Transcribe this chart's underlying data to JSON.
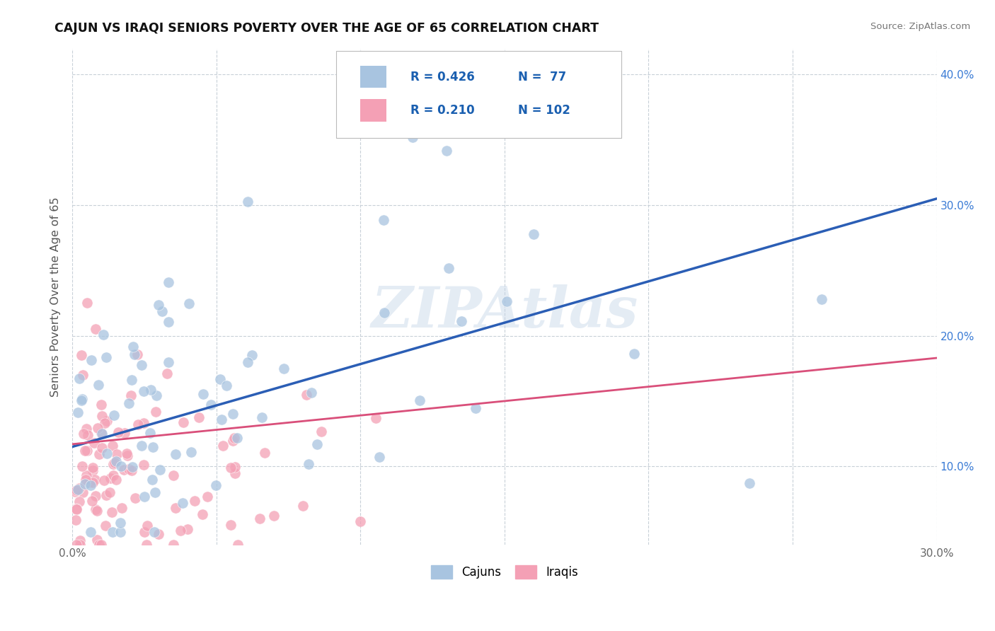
{
  "title": "CAJUN VS IRAQI SENIORS POVERTY OVER THE AGE OF 65 CORRELATION CHART",
  "source_text": "Source: ZipAtlas.com",
  "ylabel": "Seniors Poverty Over the Age of 65",
  "xlim": [
    0.0,
    0.3
  ],
  "ylim": [
    0.04,
    0.42
  ],
  "xtick_vals": [
    0.0,
    0.05,
    0.1,
    0.15,
    0.2,
    0.25,
    0.3
  ],
  "xtick_labels": [
    "0.0%",
    "",
    "",
    "",
    "",
    "",
    "30.0%"
  ],
  "ytick_vals": [
    0.1,
    0.2,
    0.3,
    0.4
  ],
  "ytick_labels": [
    "10.0%",
    "20.0%",
    "30.0%",
    "40.0%"
  ],
  "cajun_color": "#a8c4e0",
  "iraqi_color": "#f4a0b5",
  "cajun_line_color": "#2b5eb5",
  "iraqi_line_color": "#d94f7a",
  "legend_label1": "Cajuns",
  "legend_label2": "Iraqis",
  "watermark": "ZIPAtlas",
  "background_color": "#ffffff",
  "grid_color": "#c8d0d8",
  "title_color": "#111111",
  "cajun_line_x": [
    0.0,
    0.3
  ],
  "cajun_line_y": [
    0.115,
    0.305
  ],
  "iraqi_line_x": [
    0.0,
    0.3
  ],
  "iraqi_line_y": [
    0.117,
    0.183
  ]
}
